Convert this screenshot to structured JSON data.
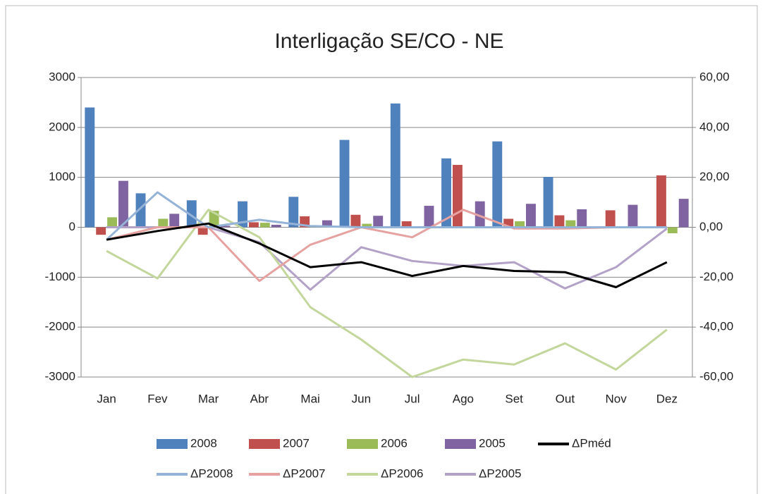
{
  "chart_data": {
    "type": "bar",
    "title": "Interligação SE/CO - NE",
    "categories": [
      "Jan",
      "Fev",
      "Mar",
      "Abr",
      "Mai",
      "Jun",
      "Jul",
      "Ago",
      "Set",
      "Out",
      "Nov",
      "Dez"
    ],
    "series": [
      {
        "name": "2008",
        "type": "bar",
        "color": "#4f81bd",
        "values": [
          2400,
          680,
          540,
          520,
          610,
          1750,
          2480,
          1380,
          1720,
          1010,
          0,
          0
        ]
      },
      {
        "name": "2007",
        "type": "bar",
        "color": "#c0504d",
        "values": [
          -150,
          0,
          -150,
          100,
          220,
          250,
          120,
          1250,
          170,
          240,
          340,
          1040
        ]
      },
      {
        "name": "2006",
        "type": "bar",
        "color": "#9bbb59",
        "values": [
          200,
          170,
          330,
          90,
          0,
          70,
          0,
          0,
          120,
          140,
          0,
          -120
        ]
      },
      {
        "name": "2005",
        "type": "bar",
        "color": "#8064a2",
        "values": [
          930,
          270,
          30,
          50,
          140,
          230,
          430,
          520,
          470,
          360,
          450,
          570
        ]
      },
      {
        "name": "ΔPméd",
        "type": "line",
        "axis": "y2",
        "color": "#000000",
        "values": [
          -5,
          -1.5,
          1.5,
          -6.5,
          -16,
          -14,
          -19.5,
          -15.5,
          -17.5,
          -18,
          -24,
          -14
        ]
      },
      {
        "name": "ΔP2008",
        "type": "line",
        "axis": "y2",
        "color": "#95b3d7",
        "values": [
          -5,
          14,
          0,
          3,
          0.5,
          0,
          0,
          0,
          0,
          0,
          0,
          0
        ]
      },
      {
        "name": "ΔP2007",
        "type": "line",
        "axis": "y2",
        "color": "#e6a2a0",
        "values": [
          -5,
          0,
          0,
          -21.5,
          -7,
          0,
          -4,
          7,
          -0.5,
          -0.5,
          0,
          0
        ]
      },
      {
        "name": "ΔP2006",
        "type": "line",
        "axis": "y2",
        "color": "#c3d69b",
        "values": [
          -9.5,
          -20.5,
          7,
          -4,
          -32,
          -45,
          -60,
          -53,
          -55,
          -46.5,
          -57,
          -41
        ]
      },
      {
        "name": "ΔP2005",
        "type": "line",
        "axis": "y2",
        "color": "#b3a2c7",
        "values": [
          0,
          0,
          0,
          -6,
          -25,
          -8,
          -13.5,
          -15.5,
          -14,
          -24.5,
          -16,
          -0.5
        ]
      }
    ],
    "ylim": [
      -3000,
      3000
    ],
    "yticks": [
      -3000,
      -2000,
      -1000,
      0,
      1000,
      2000,
      3000
    ],
    "y2lim": [
      -60,
      60
    ],
    "y2ticks": [
      {
        "value": -60,
        "label": "-60,00"
      },
      {
        "value": -40,
        "label": "-40,00"
      },
      {
        "value": -20,
        "label": "-20,00"
      },
      {
        "value": 0,
        "label": "0,00"
      },
      {
        "value": 20,
        "label": "20,00"
      },
      {
        "value": 40,
        "label": "40,00"
      },
      {
        "value": 60,
        "label": "60,00"
      }
    ],
    "grid": true,
    "legend": "bottom"
  }
}
